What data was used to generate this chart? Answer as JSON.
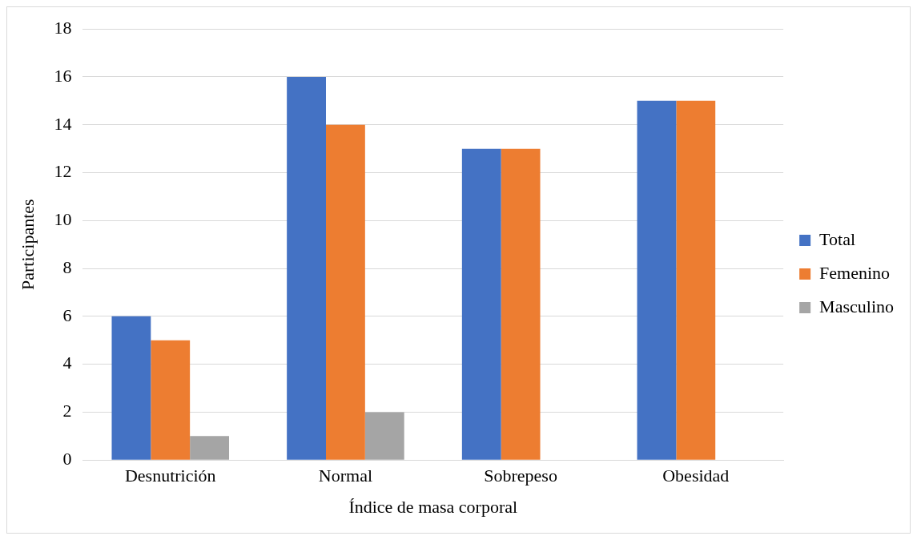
{
  "chart_data": {
    "type": "bar",
    "xlabel": "Índice de masa corporal",
    "ylabel": "Participantes",
    "categories": [
      "Desnutrición",
      "Normal",
      "Sobrepeso",
      "Obesidad"
    ],
    "series": [
      {
        "name": "Total",
        "color": "#4472c4",
        "values": [
          6,
          16,
          13,
          15
        ]
      },
      {
        "name": "Femenino",
        "color": "#ed7d31",
        "values": [
          5,
          14,
          13,
          15
        ]
      },
      {
        "name": "Masculino",
        "color": "#a5a5a5",
        "values": [
          1,
          2,
          0,
          0
        ]
      }
    ],
    "ylim": [
      0,
      18
    ],
    "yticks": [
      0,
      2,
      4,
      6,
      8,
      10,
      12,
      14,
      16,
      18
    ],
    "grid": "y",
    "legend": "right"
  }
}
